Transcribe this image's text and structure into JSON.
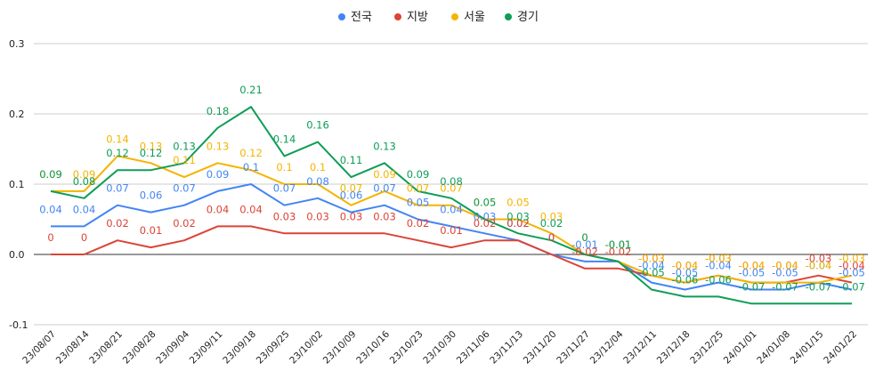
{
  "chart_data": {
    "type": "line",
    "categories": [
      "23/08/07",
      "23/08/14",
      "23/08/21",
      "23/08/28",
      "23/09/04",
      "23/09/11",
      "23/09/18",
      "23/09/25",
      "23/10/02",
      "23/10/09",
      "23/10/16",
      "23/10/23",
      "23/10/30",
      "23/11/06",
      "23/11/13",
      "23/11/20",
      "23/11/27",
      "23/12/04",
      "23/12/11",
      "23/12/18",
      "23/12/25",
      "24/01/01",
      "24/01/08",
      "24/01/15",
      "24/01/22"
    ],
    "series": [
      {
        "name": "전국",
        "color": "#4285f4",
        "values": [
          0.04,
          0.04,
          0.07,
          0.06,
          0.07,
          0.09,
          0.1,
          0.07,
          0.08,
          0.06,
          0.07,
          0.05,
          0.04,
          0.03,
          0.02,
          0,
          -0.01,
          -0.01,
          -0.04,
          -0.05,
          -0.04,
          -0.05,
          -0.05,
          -0.04,
          -0.05
        ]
      },
      {
        "name": "지방",
        "color": "#db4437",
        "values": [
          0,
          0,
          0.02,
          0.01,
          0.02,
          0.04,
          0.04,
          0.03,
          0.03,
          0.03,
          0.03,
          0.02,
          0.01,
          0.02,
          0.02,
          0,
          -0.02,
          -0.02,
          -0.03,
          -0.04,
          -0.03,
          -0.04,
          -0.04,
          -0.03,
          -0.04
        ]
      },
      {
        "name": "서울",
        "color": "#f4b400",
        "values": [
          0.09,
          0.09,
          0.14,
          0.13,
          0.11,
          0.13,
          0.12,
          0.1,
          0.1,
          0.07,
          0.09,
          0.07,
          0.07,
          0.05,
          0.05,
          0.03,
          0,
          -0.01,
          -0.03,
          -0.04,
          -0.03,
          -0.04,
          -0.04,
          -0.04,
          -0.03
        ]
      },
      {
        "name": "경기",
        "color": "#0f9d58",
        "values": [
          0.09,
          0.08,
          0.12,
          0.12,
          0.13,
          0.18,
          0.21,
          0.14,
          0.16,
          0.11,
          0.13,
          0.09,
          0.08,
          0.05,
          0.03,
          0.02,
          0,
          -0.01,
          -0.05,
          -0.06,
          -0.06,
          -0.07,
          -0.07,
          -0.07,
          -0.07
        ]
      }
    ],
    "y_ticks": [
      "0.3",
      "0.2",
      "0.1",
      "0.0",
      "-0.1"
    ],
    "ylim": [
      -0.1,
      0.3
    ],
    "grid": true,
    "legend": "top"
  }
}
